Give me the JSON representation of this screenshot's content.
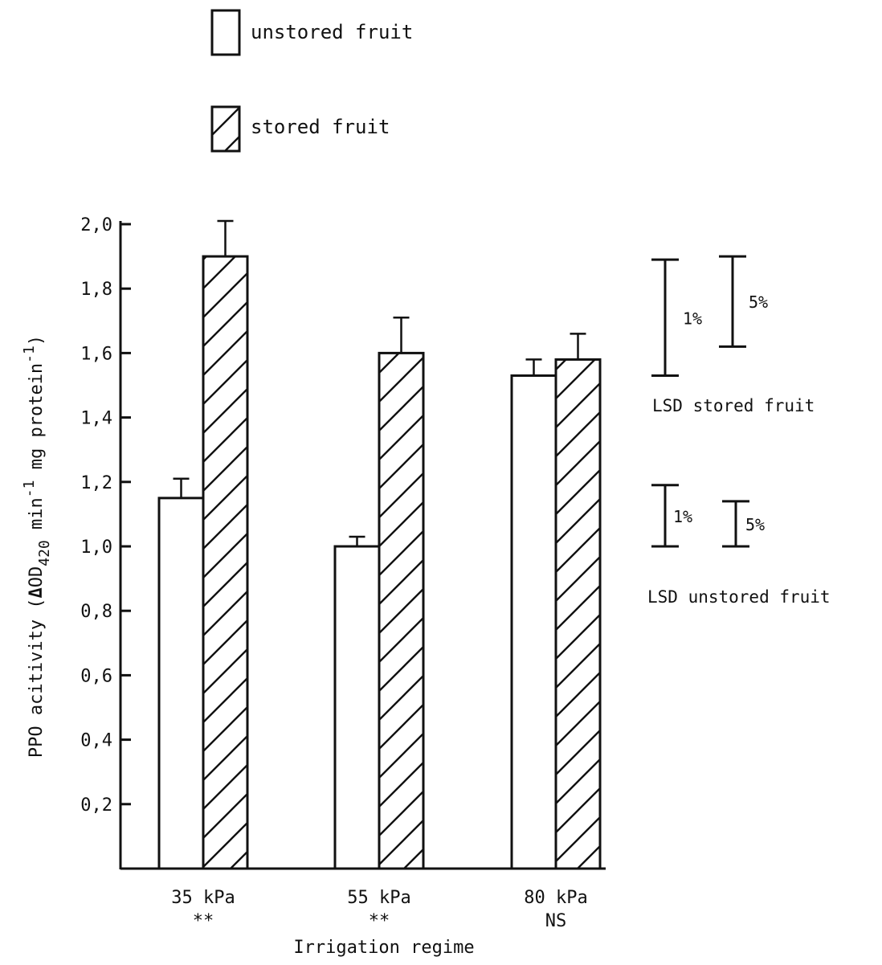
{
  "chart_data": {
    "type": "bar",
    "title": "",
    "xlabel": "Irrigation regime",
    "ylabel_parts": {
      "prefix": "PPO acitivity (",
      "delta": "Δ",
      "od": "OD",
      "od_sub": "420",
      "min": " min",
      "min_sup": "-1",
      "mg": " mg protein",
      "mg_sup": "-1",
      "suffix": ")"
    },
    "ylim": [
      0,
      2.0
    ],
    "yticks": [
      {
        "value": 0.2,
        "label": "0,2"
      },
      {
        "value": 0.4,
        "label": "0,4"
      },
      {
        "value": 0.6,
        "label": "0,6"
      },
      {
        "value": 0.8,
        "label": "0,8"
      },
      {
        "value": 1.0,
        "label": "1,0"
      },
      {
        "value": 1.2,
        "label": "1,2"
      },
      {
        "value": 1.4,
        "label": "1,4"
      },
      {
        "value": 1.6,
        "label": "1,6"
      },
      {
        "value": 1.8,
        "label": "1,8"
      },
      {
        "value": 2.0,
        "label": "2,0"
      }
    ],
    "categories": [
      "35 kPa",
      "55 kPa",
      "80 kPa"
    ],
    "significance": [
      "**",
      "**",
      "NS"
    ],
    "series": [
      {
        "name": "unstored fruit",
        "pattern": "open",
        "values": [
          1.15,
          1.0,
          1.53
        ],
        "errors": [
          0.06,
          0.03,
          0.05
        ]
      },
      {
        "name": "stored fruit",
        "pattern": "hatched",
        "values": [
          1.9,
          1.6,
          1.58
        ],
        "errors": [
          0.11,
          0.11,
          0.08
        ]
      }
    ],
    "legend_position": "top",
    "grid": false,
    "lsd": {
      "stored": {
        "label": "LSD stored fruit",
        "bars": [
          {
            "label": "1%",
            "low": 1.53,
            "high": 1.89
          },
          {
            "label": "5%",
            "low": 1.62,
            "high": 1.9
          }
        ]
      },
      "unstored": {
        "label": "LSD unstored fruit",
        "bars": [
          {
            "label": "1%",
            "low": 1.0,
            "high": 1.19
          },
          {
            "label": "5%",
            "low": 1.0,
            "high": 1.14
          }
        ]
      }
    }
  }
}
